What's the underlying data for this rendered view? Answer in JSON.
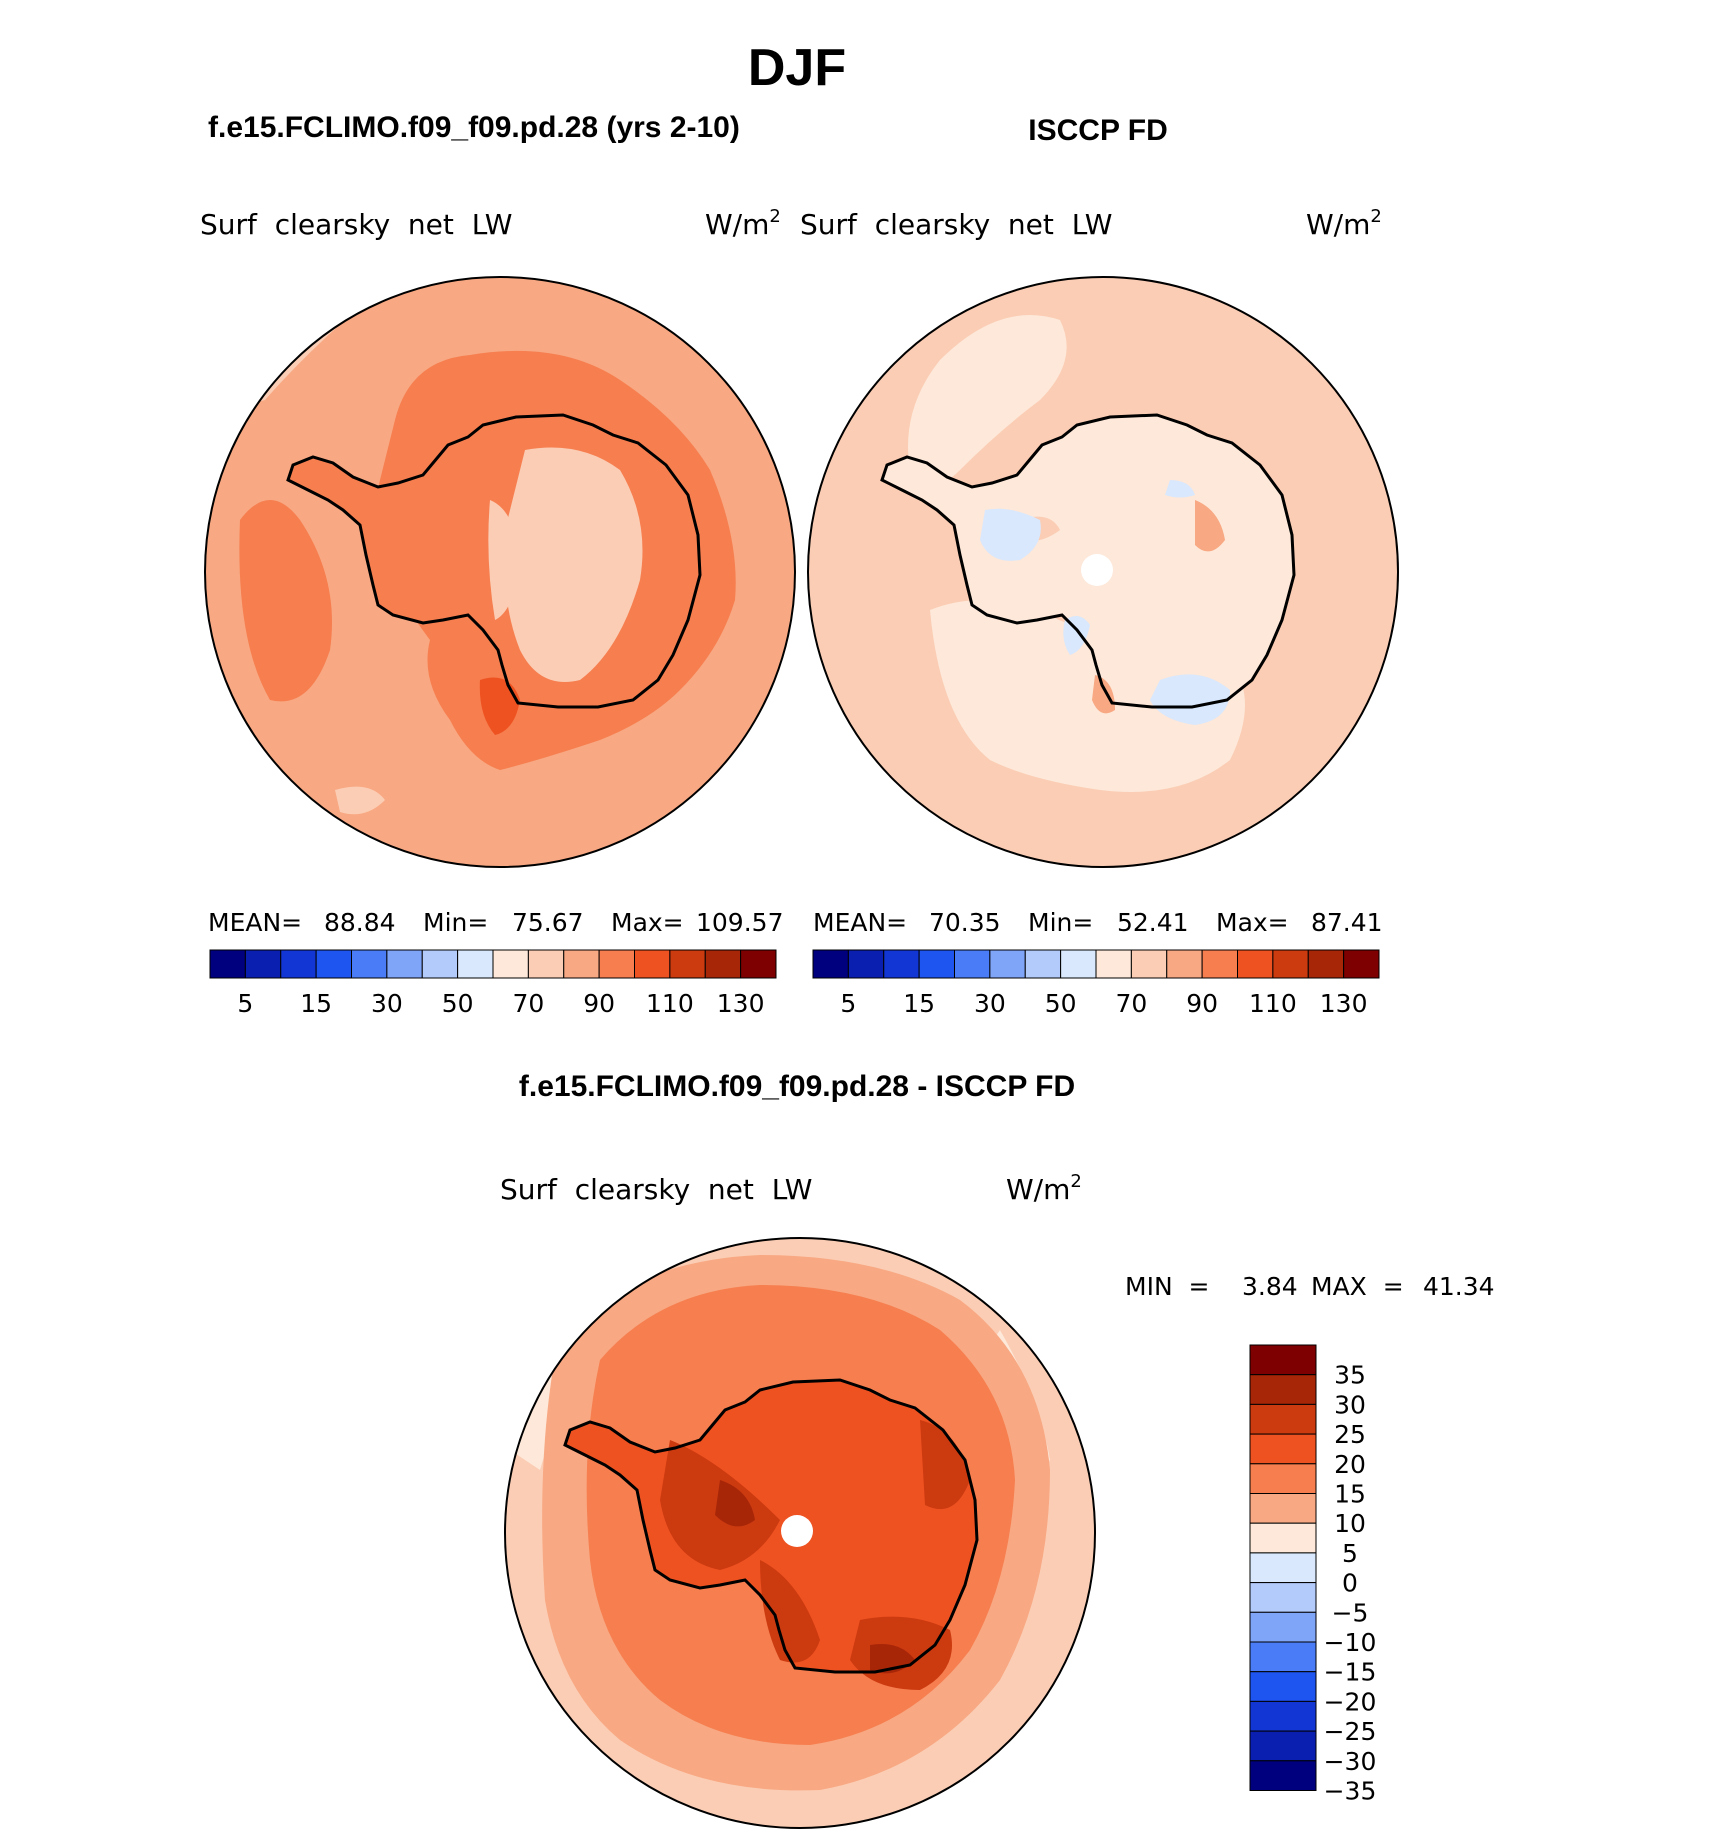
{
  "title": "DJF",
  "panels": {
    "left": {
      "case_title": "f.e15.FCLIMO.f09_f09.pd.28 (yrs 2-10)",
      "variable": "Surf  clearsky  net  LW",
      "units": "W/m",
      "units_sup": "2",
      "stats": {
        "mean_label": "MEAN=",
        "mean": "88.84",
        "min_label": "Min=",
        "min": "75.67",
        "max_label": "Max=",
        "max": "109.57"
      }
    },
    "right": {
      "case_title": "ISCCP FD",
      "variable": "Surf  clearsky  net  LW",
      "units": "W/m",
      "units_sup": "2",
      "stats": {
        "mean_label": "MEAN=",
        "mean": "70.35",
        "min_label": "Min=",
        "min": "52.41",
        "max_label": "Max=",
        "max": "87.41"
      }
    },
    "diff": {
      "case_title": "f.e15.FCLIMO.f09_f09.pd.28 - ISCCP FD",
      "variable": "Surf  clearsky  net  LW",
      "units": "W/m",
      "units_sup": "2",
      "minmax": {
        "min_label": "MIN  =",
        "min": "3.84",
        "max_label": "MAX  =",
        "max": "41.34"
      }
    }
  },
  "horizontal_colorbar": {
    "colors": [
      "#00007f",
      "#0a1fb0",
      "#1236d3",
      "#1e54f0",
      "#4a7cf7",
      "#7fa5f9",
      "#b3cbfb",
      "#d9e8fd",
      "#fde8d9",
      "#fbcdb4",
      "#f8a882",
      "#f67e4f",
      "#ef5221",
      "#cc3a10",
      "#a82608",
      "#7f0000"
    ],
    "labels": [
      "5",
      "15",
      "30",
      "50",
      "70",
      "90",
      "110",
      "130"
    ]
  },
  "vertical_colorbar": {
    "colors_top_to_bottom": [
      "#7f0000",
      "#a82608",
      "#cc3a10",
      "#ef5221",
      "#f67e4f",
      "#f8a882",
      "#fde8d9",
      "#d9e8fd",
      "#b3cbfb",
      "#7fa5f9",
      "#4a7cf7",
      "#1e54f0",
      "#1236d3",
      "#0a1fb0",
      "#00007f"
    ],
    "labels": [
      "35",
      "30",
      "25",
      "20",
      "15",
      "10",
      "5",
      "0",
      "−5",
      "−10",
      "−15",
      "−20",
      "−25",
      "−30",
      "−35"
    ]
  },
  "map_colors": {
    "left_base": "#f8a882",
    "left_high": "#f67e4f",
    "left_peak": "#ef5221",
    "left_low": "#fbcdb4",
    "left_min": "#fde8d9",
    "right_base": "#fbcdb4",
    "right_low": "#fde8d9",
    "right_neg": "#d9e8fd",
    "right_high": "#f8a882",
    "diff_base": "#f8a882",
    "diff_edge": "#fbcdb4",
    "diff_outer": "#fde8d9",
    "diff_mid": "#f67e4f",
    "diff_high": "#ef5221",
    "diff_vhigh": "#cc3a10",
    "diff_peak": "#a82608"
  }
}
